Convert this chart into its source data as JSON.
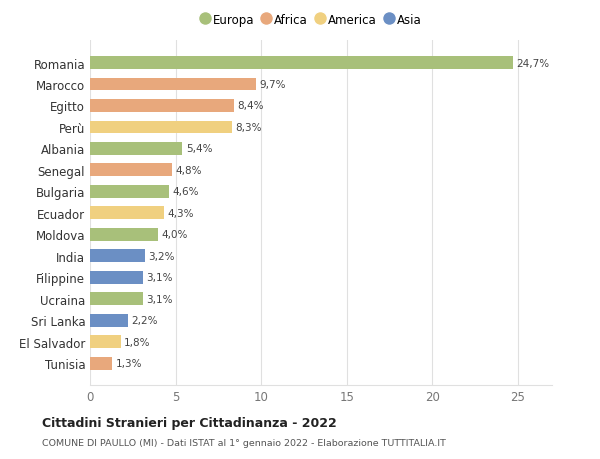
{
  "categories": [
    "Romania",
    "Marocco",
    "Egitto",
    "Perù",
    "Albania",
    "Senegal",
    "Bulgaria",
    "Ecuador",
    "Moldova",
    "India",
    "Filippine",
    "Ucraina",
    "Sri Lanka",
    "El Salvador",
    "Tunisia"
  ],
  "values": [
    24.7,
    9.7,
    8.4,
    8.3,
    5.4,
    4.8,
    4.6,
    4.3,
    4.0,
    3.2,
    3.1,
    3.1,
    2.2,
    1.8,
    1.3
  ],
  "labels": [
    "24,7%",
    "9,7%",
    "8,4%",
    "8,3%",
    "5,4%",
    "4,8%",
    "4,6%",
    "4,3%",
    "4,0%",
    "3,2%",
    "3,1%",
    "3,1%",
    "2,2%",
    "1,8%",
    "1,3%"
  ],
  "colors": [
    "#a8c07a",
    "#e8a87c",
    "#e8a87c",
    "#f0d080",
    "#a8c07a",
    "#e8a87c",
    "#a8c07a",
    "#f0d080",
    "#a8c07a",
    "#6b8fc4",
    "#6b8fc4",
    "#a8c07a",
    "#6b8fc4",
    "#f0d080",
    "#e8a87c"
  ],
  "continent": [
    "Europa",
    "Africa",
    "Africa",
    "America",
    "Europa",
    "Africa",
    "Europa",
    "America",
    "Europa",
    "Asia",
    "Asia",
    "Europa",
    "Asia",
    "America",
    "Africa"
  ],
  "legend_labels": [
    "Europa",
    "Africa",
    "America",
    "Asia"
  ],
  "legend_colors": [
    "#a8c07a",
    "#e8a87c",
    "#f0d080",
    "#6b8fc4"
  ],
  "title": "Cittadini Stranieri per Cittadinanza - 2022",
  "subtitle": "COMUNE DI PAULLO (MI) - Dati ISTAT al 1° gennaio 2022 - Elaborazione TUTTITALIA.IT",
  "xlim": [
    0,
    27
  ],
  "xticks": [
    0,
    5,
    10,
    15,
    20,
    25
  ],
  "background_color": "#ffffff",
  "grid_color": "#e0e0e0",
  "bar_height": 0.6
}
